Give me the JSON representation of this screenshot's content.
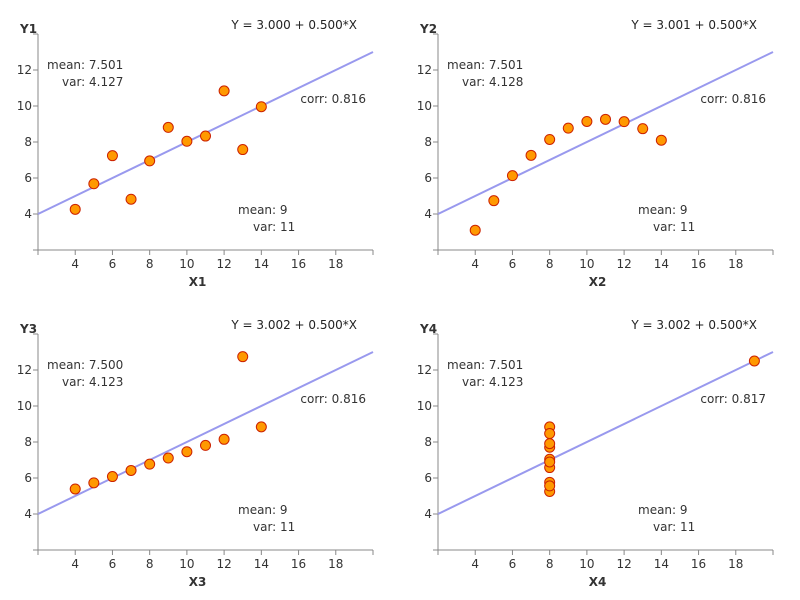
{
  "colors": {
    "fit_line": "#9999ee",
    "marker_fill": "#ff9900",
    "marker_edge": "#cc2200",
    "axis": "#888888"
  },
  "chart_data": [
    {
      "type": "scatter",
      "ylabel": "Y1",
      "xlabel": "X1",
      "equation": "Y = 3.000 + 0.500*X",
      "y_mean": "mean: 7.501",
      "y_var": "var: 4.127",
      "corr": "corr: 0.816",
      "x_mean": "mean: 9",
      "x_var": "var: 11",
      "xlim": [
        2,
        20
      ],
      "ylim": [
        2,
        14
      ],
      "xticks": [
        "4",
        "6",
        "8",
        "10",
        "12",
        "14",
        "16",
        "18"
      ],
      "yticks": [
        "4",
        "6",
        "8",
        "10",
        "12"
      ],
      "fit": {
        "intercept": 3.0,
        "slope": 0.5
      },
      "points": [
        [
          10,
          8.04
        ],
        [
          8,
          6.95
        ],
        [
          13,
          7.58
        ],
        [
          9,
          8.81
        ],
        [
          11,
          8.33
        ],
        [
          14,
          9.96
        ],
        [
          6,
          7.24
        ],
        [
          4,
          4.26
        ],
        [
          12,
          10.84
        ],
        [
          7,
          4.82
        ],
        [
          5,
          5.68
        ]
      ]
    },
    {
      "type": "scatter",
      "ylabel": "Y2",
      "xlabel": "X2",
      "equation": "Y = 3.001 + 0.500*X",
      "y_mean": "mean: 7.501",
      "y_var": "var: 4.128",
      "corr": "corr: 0.816",
      "x_mean": "mean: 9",
      "x_var": "var: 11",
      "xlim": [
        2,
        20
      ],
      "ylim": [
        2,
        14
      ],
      "xticks": [
        "4",
        "6",
        "8",
        "10",
        "12",
        "14",
        "16",
        "18"
      ],
      "yticks": [
        "4",
        "6",
        "8",
        "10",
        "12"
      ],
      "fit": {
        "intercept": 3.001,
        "slope": 0.5
      },
      "points": [
        [
          10,
          9.14
        ],
        [
          8,
          8.14
        ],
        [
          13,
          8.74
        ],
        [
          9,
          8.77
        ],
        [
          11,
          9.26
        ],
        [
          14,
          8.1
        ],
        [
          6,
          6.13
        ],
        [
          4,
          3.1
        ],
        [
          12,
          9.13
        ],
        [
          7,
          7.26
        ],
        [
          5,
          4.74
        ]
      ]
    },
    {
      "type": "scatter",
      "ylabel": "Y3",
      "xlabel": "X3",
      "equation": "Y = 3.002 + 0.500*X",
      "y_mean": "mean: 7.500",
      "y_var": "var: 4.123",
      "corr": "corr: 0.816",
      "x_mean": "mean: 9",
      "x_var": "var: 11",
      "xlim": [
        2,
        20
      ],
      "ylim": [
        2,
        14
      ],
      "xticks": [
        "4",
        "6",
        "8",
        "10",
        "12",
        "14",
        "16",
        "18"
      ],
      "yticks": [
        "4",
        "6",
        "8",
        "10",
        "12"
      ],
      "fit": {
        "intercept": 3.002,
        "slope": 0.5
      },
      "points": [
        [
          10,
          7.46
        ],
        [
          8,
          6.77
        ],
        [
          13,
          12.74
        ],
        [
          9,
          7.11
        ],
        [
          11,
          7.81
        ],
        [
          14,
          8.84
        ],
        [
          6,
          6.08
        ],
        [
          4,
          5.39
        ],
        [
          12,
          8.15
        ],
        [
          7,
          6.42
        ],
        [
          5,
          5.73
        ]
      ]
    },
    {
      "type": "scatter",
      "ylabel": "Y4",
      "xlabel": "X4",
      "equation": "Y = 3.002 + 0.500*X",
      "y_mean": "mean: 7.501",
      "y_var": "var: 4.123",
      "corr": "corr: 0.817",
      "x_mean": "mean: 9",
      "x_var": "var: 11",
      "xlim": [
        2,
        20
      ],
      "ylim": [
        2,
        14
      ],
      "xticks": [
        "4",
        "6",
        "8",
        "10",
        "12",
        "14",
        "16",
        "18"
      ],
      "yticks": [
        "4",
        "6",
        "8",
        "10",
        "12"
      ],
      "fit": {
        "intercept": 3.002,
        "slope": 0.5
      },
      "points": [
        [
          8,
          6.58
        ],
        [
          8,
          5.76
        ],
        [
          8,
          7.71
        ],
        [
          8,
          8.84
        ],
        [
          8,
          8.47
        ],
        [
          8,
          7.04
        ],
        [
          8,
          5.25
        ],
        [
          19,
          12.5
        ],
        [
          8,
          5.56
        ],
        [
          8,
          7.91
        ],
        [
          8,
          6.89
        ]
      ]
    }
  ]
}
